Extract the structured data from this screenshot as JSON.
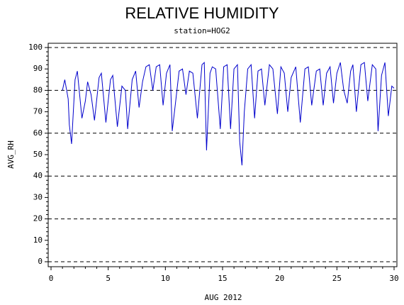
{
  "chart_data": {
    "type": "line",
    "title": "RELATIVE HUMIDITY",
    "subtitle": "station=HOG2",
    "x_label": "AUG 2012",
    "y_label": "AVG_RH",
    "xlim": [
      0,
      30
    ],
    "xticks": [
      0,
      5,
      10,
      15,
      20,
      25,
      30
    ],
    "ylim": [
      0,
      100
    ],
    "yticks": [
      0,
      10,
      20,
      30,
      40,
      50,
      60,
      70,
      80,
      90,
      100
    ],
    "hlines": [
      0,
      20,
      40,
      60,
      80,
      100
    ],
    "series": [
      {
        "color": "#0000cc",
        "x": [
          1.0,
          1.2,
          1.5,
          1.6,
          1.8,
          2.1,
          2.3,
          2.7,
          3.0,
          3.2,
          3.5,
          3.8,
          4.2,
          4.4,
          4.8,
          5.2,
          5.4,
          5.8,
          6.2,
          6.5,
          6.7,
          7.1,
          7.4,
          7.7,
          8.0,
          8.3,
          8.6,
          8.9,
          9.2,
          9.5,
          9.8,
          10.1,
          10.4,
          10.6,
          10.9,
          11.2,
          11.5,
          11.8,
          12.1,
          12.4,
          12.8,
          13.2,
          13.4,
          13.6,
          13.9,
          14.1,
          14.4,
          14.8,
          15.1,
          15.4,
          15.7,
          16.0,
          16.3,
          16.5,
          16.7,
          16.9,
          17.2,
          17.5,
          17.8,
          18.1,
          18.4,
          18.7,
          19.1,
          19.4,
          19.8,
          20.1,
          20.4,
          20.7,
          21.0,
          21.4,
          21.8,
          22.2,
          22.5,
          22.8,
          23.2,
          23.5,
          23.8,
          24.1,
          24.4,
          24.7,
          25.0,
          25.3,
          25.6,
          25.9,
          26.2,
          26.4,
          26.7,
          27.1,
          27.4,
          27.7,
          28.1,
          28.4,
          28.6,
          28.9,
          29.2,
          29.5,
          29.8,
          30.0
        ],
        "values": [
          80,
          85,
          76,
          64,
          55,
          85,
          89,
          67,
          75,
          84,
          78,
          66,
          86,
          88,
          65,
          85,
          87,
          63,
          82,
          80,
          62,
          85,
          89,
          72,
          84,
          91,
          92,
          80,
          91,
          92,
          73,
          88,
          92,
          61,
          75,
          89,
          90,
          78,
          89,
          88,
          67,
          92,
          93,
          52,
          88,
          91,
          90,
          62,
          91,
          92,
          62,
          90,
          92,
          56,
          45,
          70,
          90,
          92,
          67,
          89,
          90,
          73,
          92,
          90,
          69,
          91,
          88,
          70,
          86,
          91,
          65,
          90,
          91,
          73,
          89,
          90,
          73,
          88,
          91,
          74,
          88,
          93,
          80,
          74,
          89,
          92,
          70,
          92,
          93,
          75,
          92,
          90,
          61,
          87,
          93,
          68,
          82,
          81
        ]
      }
    ]
  }
}
